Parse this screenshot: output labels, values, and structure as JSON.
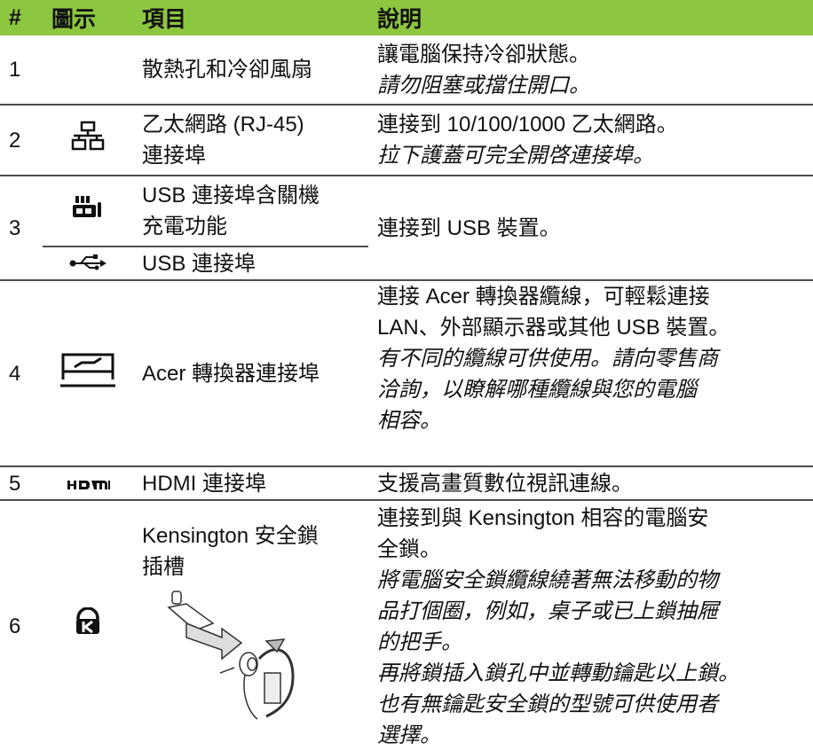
{
  "header": [
    "#",
    "圖示",
    "項目",
    "說明"
  ],
  "rows": [
    {
      "number": "1",
      "item": [
        "散熱孔和冷卻風扇"
      ],
      "text": [
        "讓電腦保持冷卻狀態。"
      ],
      "note": [
        "請勿阻塞或擋住開口。"
      ]
    },
    {
      "number": "2",
      "item": [
        "乙太網路 (RJ-45)",
        "連接埠"
      ],
      "text": [
        "連接到 10/100/1000 乙太網路。"
      ],
      "note": [
        "拉下護蓋可完全開啓連接埠。"
      ]
    },
    {
      "number": "3",
      "item": [
        "USB 連接埠含關機",
        "充電功能"
      ],
      "sub_item": [
        "USB 連接埠"
      ],
      "text": [
        "連接到 USB 裝置。"
      ]
    },
    {
      "number": "4",
      "item": [
        "Acer 轉換器連接埠"
      ],
      "text": [
        "連接 Acer 轉換器纜線，可輕鬆連接",
        "LAN、外部顯示器或其他 USB 裝置。"
      ],
      "note": [
        "有不同的纜線可供使用。請向零售商",
        "洽詢，以瞭解哪種纜線與您的電腦",
        "相容。"
      ]
    },
    {
      "number": "5",
      "item": [
        "HDMI 連接埠"
      ],
      "text": [
        "支援高畫質數位視訊連線。"
      ]
    },
    {
      "number": "6",
      "item": [
        "Kensington 安全鎖",
        "插槽"
      ],
      "text": [
        "連接到與 Kensington 相容的電腦安",
        "全鎖。"
      ],
      "note": [
        "將電腦安全鎖纜線繞著無法移動的物",
        "品打個圈，例如，桌子或已上鎖抽屜",
        "的把手。",
        "再將鎖插入鎖孔中並轉動鑰匙以上鎖。",
        "也有無鑰匙安全鎖的型號可供使用者",
        "選擇。"
      ]
    }
  ]
}
